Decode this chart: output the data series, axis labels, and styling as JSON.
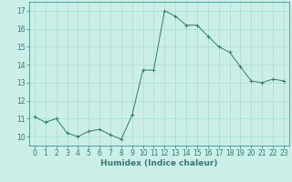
{
  "x": [
    0,
    1,
    2,
    3,
    4,
    5,
    6,
    7,
    8,
    9,
    10,
    11,
    12,
    13,
    14,
    15,
    16,
    17,
    18,
    19,
    20,
    21,
    22,
    23
  ],
  "y": [
    11.1,
    10.8,
    11.0,
    10.2,
    10.0,
    10.3,
    10.4,
    10.1,
    9.85,
    11.2,
    13.7,
    13.7,
    17.0,
    16.7,
    16.2,
    16.2,
    15.6,
    15.0,
    14.7,
    13.9,
    13.1,
    13.0,
    13.2,
    13.1
  ],
  "line_color": "#2e7d6e",
  "marker": "+",
  "marker_size": 3,
  "bg_color": "#cceee8",
  "grid_color": "#aaddcc",
  "xlabel": "Humidex (Indice chaleur)",
  "xlim": [
    -0.5,
    23.5
  ],
  "ylim": [
    9.5,
    17.5
  ],
  "yticks": [
    10,
    11,
    12,
    13,
    14,
    15,
    16,
    17
  ],
  "xticks": [
    0,
    1,
    2,
    3,
    4,
    5,
    6,
    7,
    8,
    9,
    10,
    11,
    12,
    13,
    14,
    15,
    16,
    17,
    18,
    19,
    20,
    21,
    22,
    23
  ],
  "tick_fontsize": 5.5,
  "xlabel_fontsize": 6.5
}
